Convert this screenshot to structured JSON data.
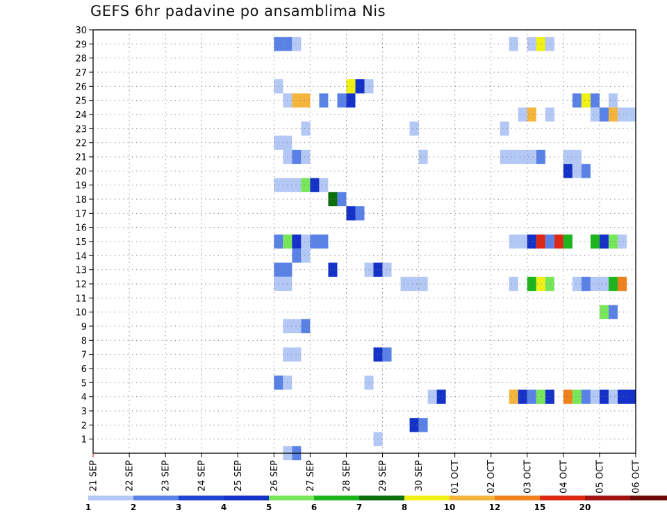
{
  "chart_data": {
    "type": "heatmap",
    "title": "GEFS 6hr padavine po ansamblima Nis",
    "x_tick_labels": [
      "21 SEP",
      "22 SEP",
      "23 SEP",
      "24 SEP",
      "25 SEP",
      "26 SEP",
      "27 SEP",
      "28 SEP",
      "29 SEP",
      "30 SEP",
      "01 OCT",
      "02 OCT",
      "03 OCT",
      "04 OCT",
      "05 OCT",
      "06 OCT"
    ],
    "x_range_days": [
      0,
      15
    ],
    "y_tick_labels": [
      "1",
      "2",
      "3",
      "4",
      "5",
      "6",
      "7",
      "8",
      "9",
      "10",
      "11",
      "12",
      "13",
      "14",
      "15",
      "16",
      "17",
      "18",
      "19",
      "20",
      "21",
      "22",
      "23",
      "24",
      "25",
      "26",
      "27",
      "28",
      "29",
      "30"
    ],
    "y_range": [
      0,
      30
    ],
    "grid": true,
    "colorbar": {
      "labels": [
        "1",
        "2",
        "3",
        "4",
        "5",
        "6",
        "7",
        "8",
        "10",
        "12",
        "15",
        "20"
      ],
      "colors": [
        "#b4c8f5",
        "#5a82e6",
        "#1e46d2",
        "#1432c8",
        "#78e65a",
        "#1eb41e",
        "#0a6e0a",
        "#f0f014",
        "#f5b43c",
        "#f0821e",
        "#dc2814",
        "#a01414",
        "#6e0a0a"
      ]
    },
    "cells": [
      {
        "m": 29,
        "s": [
          [
            5.0,
            5.25,
            1
          ],
          [
            5.25,
            5.5,
            1
          ],
          [
            5.5,
            5.75,
            0
          ]
        ]
      },
      {
        "m": 29,
        "s": [
          [
            11.5,
            11.75,
            0
          ],
          [
            12.0,
            12.25,
            0
          ],
          [
            12.25,
            12.5,
            7
          ],
          [
            12.5,
            12.75,
            0
          ]
        ]
      },
      {
        "m": 26,
        "s": [
          [
            5.0,
            5.25,
            0
          ],
          [
            7.0,
            7.25,
            7
          ],
          [
            7.25,
            7.5,
            3
          ],
          [
            7.5,
            7.75,
            0
          ]
        ]
      },
      {
        "m": 25,
        "s": [
          [
            5.25,
            5.5,
            0
          ],
          [
            5.5,
            6.0,
            8
          ],
          [
            6.25,
            6.5,
            1
          ],
          [
            6.75,
            7.0,
            1
          ],
          [
            7.0,
            7.25,
            3
          ]
        ]
      },
      {
        "m": 25,
        "s": [
          [
            13.25,
            13.5,
            1
          ],
          [
            13.5,
            13.75,
            7
          ],
          [
            13.75,
            14.0,
            1
          ],
          [
            14.25,
            14.5,
            0
          ]
        ]
      },
      {
        "m": 24,
        "s": [
          [
            11.75,
            12.0,
            0
          ],
          [
            12.0,
            12.25,
            8
          ],
          [
            12.5,
            12.75,
            0
          ],
          [
            13.75,
            14.0,
            0
          ],
          [
            14.0,
            14.25,
            1
          ],
          [
            14.25,
            14.5,
            8
          ],
          [
            14.5,
            15.0,
            0
          ]
        ]
      },
      {
        "m": 23,
        "s": [
          [
            5.75,
            6.0,
            0
          ],
          [
            8.75,
            9.0,
            0
          ],
          [
            11.25,
            11.5,
            0
          ]
        ]
      },
      {
        "m": 22,
        "s": [
          [
            5.0,
            5.5,
            0
          ]
        ]
      },
      {
        "m": 21,
        "s": [
          [
            5.25,
            5.5,
            0
          ],
          [
            5.5,
            5.75,
            1
          ],
          [
            5.75,
            6.0,
            0
          ],
          [
            9.0,
            9.25,
            0
          ],
          [
            11.25,
            12.25,
            0
          ],
          [
            12.25,
            12.5,
            1
          ],
          [
            13.0,
            13.5,
            0
          ]
        ]
      },
      {
        "m": 20,
        "s": [
          [
            13.0,
            13.25,
            3
          ],
          [
            13.25,
            13.5,
            0
          ],
          [
            13.5,
            13.75,
            1
          ]
        ]
      },
      {
        "m": 19,
        "s": [
          [
            5.0,
            5.75,
            0
          ],
          [
            5.75,
            6.0,
            4
          ],
          [
            6.0,
            6.25,
            3
          ],
          [
            6.25,
            6.5,
            0
          ]
        ]
      },
      {
        "m": 18,
        "s": [
          [
            6.5,
            6.75,
            6
          ],
          [
            6.75,
            7.0,
            1
          ]
        ]
      },
      {
        "m": 17,
        "s": [
          [
            7.0,
            7.25,
            3
          ],
          [
            7.25,
            7.5,
            1
          ]
        ]
      },
      {
        "m": 15,
        "s": [
          [
            5.0,
            5.25,
            1
          ],
          [
            5.25,
            5.5,
            4
          ],
          [
            5.5,
            5.75,
            3
          ],
          [
            5.75,
            6.0,
            0
          ],
          [
            6.0,
            6.5,
            1
          ]
        ]
      },
      {
        "m": 15,
        "s": [
          [
            11.5,
            12.0,
            0
          ],
          [
            12.0,
            12.25,
            3
          ],
          [
            12.25,
            12.5,
            10
          ],
          [
            12.5,
            12.75,
            1
          ],
          [
            12.75,
            13.0,
            10
          ],
          [
            13.0,
            13.25,
            5
          ],
          [
            13.75,
            14.0,
            5
          ],
          [
            14.0,
            14.25,
            3
          ],
          [
            14.25,
            14.5,
            4
          ],
          [
            14.5,
            14.75,
            0
          ]
        ]
      },
      {
        "m": 14,
        "s": [
          [
            5.5,
            5.75,
            1
          ],
          [
            5.75,
            6.0,
            0
          ]
        ]
      },
      {
        "m": 13,
        "s": [
          [
            5.0,
            5.5,
            1
          ],
          [
            6.5,
            6.75,
            3
          ],
          [
            7.5,
            7.75,
            0
          ],
          [
            7.75,
            8.0,
            3
          ],
          [
            8.0,
            8.25,
            0
          ]
        ]
      },
      {
        "m": 12,
        "s": [
          [
            5.0,
            5.5,
            0
          ],
          [
            8.5,
            9.25,
            0
          ]
        ]
      },
      {
        "m": 12,
        "s": [
          [
            11.5,
            11.75,
            0
          ],
          [
            12.0,
            12.25,
            5
          ],
          [
            12.25,
            12.5,
            7
          ],
          [
            12.5,
            12.75,
            4
          ],
          [
            13.25,
            13.5,
            0
          ],
          [
            13.5,
            13.75,
            1
          ],
          [
            13.75,
            14.25,
            0
          ],
          [
            14.25,
            14.5,
            5
          ],
          [
            14.5,
            14.75,
            9
          ]
        ]
      },
      {
        "m": 10,
        "s": [
          [
            14.0,
            14.25,
            4
          ],
          [
            14.25,
            14.5,
            1
          ]
        ]
      },
      {
        "m": 9,
        "s": [
          [
            5.25,
            5.75,
            0
          ],
          [
            5.75,
            6.0,
            1
          ]
        ]
      },
      {
        "m": 7,
        "s": [
          [
            5.25,
            5.75,
            0
          ],
          [
            7.75,
            8.0,
            3
          ],
          [
            8.0,
            8.25,
            1
          ]
        ]
      },
      {
        "m": 5,
        "s": [
          [
            5.0,
            5.25,
            1
          ],
          [
            5.25,
            5.5,
            0
          ],
          [
            7.5,
            7.75,
            0
          ]
        ]
      },
      {
        "m": 4,
        "s": [
          [
            9.25,
            9.5,
            0
          ],
          [
            9.5,
            9.75,
            3
          ]
        ]
      },
      {
        "m": 4,
        "s": [
          [
            11.5,
            11.75,
            8
          ],
          [
            11.75,
            12.0,
            3
          ],
          [
            12.0,
            12.25,
            1
          ],
          [
            12.25,
            12.5,
            4
          ],
          [
            12.5,
            12.75,
            3
          ],
          [
            13.0,
            13.25,
            9
          ],
          [
            13.25,
            13.5,
            4
          ],
          [
            13.5,
            13.75,
            1
          ],
          [
            13.75,
            14.0,
            0
          ],
          [
            14.0,
            14.25,
            3
          ],
          [
            14.25,
            14.5,
            0
          ],
          [
            14.5,
            15.0,
            3
          ]
        ]
      },
      {
        "m": 2,
        "s": [
          [
            8.75,
            9.0,
            3
          ],
          [
            9.0,
            9.25,
            1
          ]
        ]
      },
      {
        "m": 1,
        "s": [
          [
            7.75,
            8.0,
            0
          ]
        ]
      },
      {
        "m": 0,
        "s": [
          [
            5.25,
            5.5,
            0
          ],
          [
            5.5,
            5.75,
            1
          ]
        ]
      }
    ]
  }
}
